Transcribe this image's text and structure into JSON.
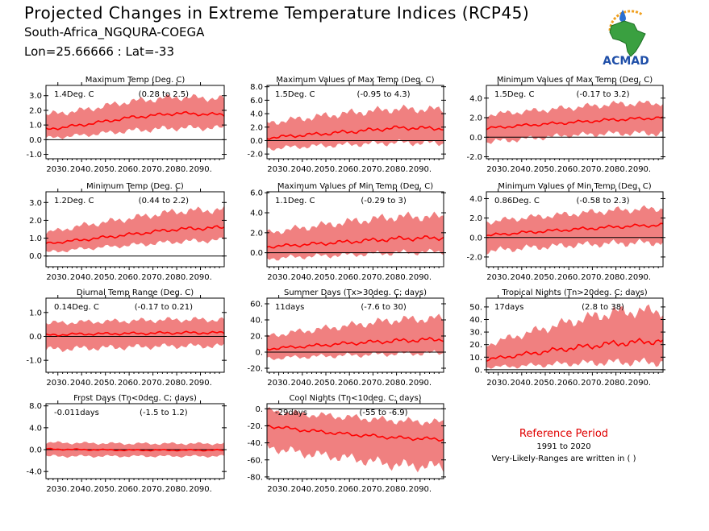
{
  "header": {
    "title": "Projected Changes in Extreme Temperature Indices (RCP45)",
    "subtitle1": "South-Africa_NGQURA-COEGA",
    "subtitle2": "Lon=25.66666 : Lat=-33"
  },
  "logo": {
    "text": "ACMAD",
    "icon": "africa-map-logo"
  },
  "reference": {
    "title": "Reference Period",
    "years": "1991 to 2020",
    "note": "Very-Likely-Ranges are written in ( )"
  },
  "colors": {
    "band": "#f08080",
    "line": "#ff0000",
    "zero": "#000000",
    "ref_title": "#e00000"
  },
  "chart_data": [
    {
      "type": "area",
      "title": "Maximum Temp (Deg. C)",
      "change": "1.4Deg. C",
      "range": "(0.28 to 2.5)",
      "x_ticks": [
        "2030.",
        "2040.",
        "2050.",
        "2060.",
        "2070.",
        "2080.",
        "2090."
      ],
      "x_range": [
        2025,
        2100
      ],
      "y_ticks": [
        "-1.0",
        "0.0",
        "1.0",
        "2.0",
        "3.0"
      ],
      "y_tick_values": [
        -1,
        0,
        1,
        2,
        3
      ],
      "ylim": [
        -1.3,
        3.7
      ],
      "series": [
        {
          "x": [
            2025,
            2040,
            2060,
            2080,
            2100
          ],
          "mean": [
            0.7,
            1.0,
            1.5,
            1.8,
            1.7
          ],
          "low": [
            0.1,
            0.3,
            0.6,
            0.8,
            0.8
          ],
          "high": [
            1.7,
            2.0,
            2.6,
            2.9,
            2.8
          ]
        }
      ]
    },
    {
      "type": "area",
      "title": "Maximum Values of Max Temp (Deg. C)",
      "change": "1.5Deg. C",
      "range": "(-0.95 to 4.3)",
      "x_ticks": [
        "2030.",
        "2040.",
        "2050.",
        "2060.",
        "2070.",
        "2080.",
        "2090."
      ],
      "x_range": [
        2025,
        2100
      ],
      "y_ticks": [
        "-2.0",
        "0.0",
        "2.0",
        "4.0",
        "6.0",
        "8.0"
      ],
      "y_tick_values": [
        -2,
        0,
        2,
        4,
        6,
        8
      ],
      "ylim": [
        -2.7,
        8.2
      ],
      "series": [
        {
          "x": [
            2025,
            2040,
            2060,
            2080,
            2100
          ],
          "mean": [
            0.4,
            0.8,
            1.3,
            1.9,
            1.8
          ],
          "low": [
            -1.2,
            -0.9,
            -0.6,
            -0.3,
            -0.4
          ],
          "high": [
            2.6,
            3.3,
            4.1,
            4.7,
            4.6
          ]
        }
      ]
    },
    {
      "type": "area",
      "title": "Minimum Values of Max Temp (Deg. C)",
      "change": "1.5Deg. C",
      "range": "(-0.17 to 3.2)",
      "x_ticks": [
        "2030.",
        "2040.",
        "2050.",
        "2060.",
        "2070.",
        "2080.",
        "2090."
      ],
      "x_range": [
        2025,
        2100
      ],
      "y_ticks": [
        "-2.0",
        "0.0",
        "2.0",
        "4.0"
      ],
      "y_tick_values": [
        -2,
        0,
        2,
        4
      ],
      "ylim": [
        -2.2,
        5.3
      ],
      "series": [
        {
          "x": [
            2025,
            2040,
            2060,
            2080,
            2100
          ],
          "mean": [
            0.9,
            1.2,
            1.5,
            1.8,
            2.0
          ],
          "low": [
            -0.5,
            -0.2,
            0.2,
            0.4,
            0.4
          ],
          "high": [
            2.3,
            2.6,
            3.0,
            3.4,
            3.5
          ]
        }
      ]
    },
    {
      "type": "area",
      "title": "Minimum Temp (Deg. C)",
      "change": "1.2Deg. C",
      "range": "(0.44 to 2.2)",
      "x_ticks": [
        "2030.",
        "2040.",
        "2050.",
        "2060.",
        "2070.",
        "2080.",
        "2090."
      ],
      "x_range": [
        2025,
        2100
      ],
      "y_ticks": [
        "0.0",
        "1.0",
        "2.0",
        "3.0"
      ],
      "y_tick_values": [
        0,
        1,
        2,
        3
      ],
      "ylim": [
        -0.6,
        3.6
      ],
      "series": [
        {
          "x": [
            2025,
            2040,
            2060,
            2080,
            2100
          ],
          "mean": [
            0.7,
            0.9,
            1.2,
            1.5,
            1.6
          ],
          "low": [
            0.2,
            0.4,
            0.6,
            0.8,
            0.9
          ],
          "high": [
            1.3,
            1.7,
            2.1,
            2.5,
            2.6
          ]
        }
      ]
    },
    {
      "type": "area",
      "title": "Maximum Values of Min Temp (Deg. C)",
      "change": "1.1Deg. C",
      "range": "(-0.29 to 3)",
      "x_ticks": [
        "2030.",
        "2040.",
        "2050.",
        "2060.",
        "2070.",
        "2080.",
        "2090."
      ],
      "x_range": [
        2025,
        2100
      ],
      "y_ticks": [
        "0.0",
        "2.0",
        "4.0",
        "6.0"
      ],
      "y_tick_values": [
        0,
        2,
        4,
        6
      ],
      "ylim": [
        -1.4,
        6.1
      ],
      "series": [
        {
          "x": [
            2025,
            2040,
            2060,
            2080,
            2100
          ],
          "mean": [
            0.6,
            0.8,
            1.1,
            1.4,
            1.5
          ],
          "low": [
            -0.6,
            -0.4,
            -0.2,
            0.0,
            0.1
          ],
          "high": [
            2.0,
            2.5,
            3.1,
            3.6,
            3.6
          ]
        }
      ]
    },
    {
      "type": "area",
      "title": "Minimum Values of Min Temp (Deg. C)",
      "change": "0.86Deg. C",
      "range": "(-0.58 to 2.3)",
      "x_ticks": [
        "2030.",
        "2040.",
        "2050.",
        "2060.",
        "2070.",
        "2080.",
        "2090."
      ],
      "x_range": [
        2025,
        2100
      ],
      "y_ticks": [
        "-2.0",
        "0.0",
        "2.0",
        "4.0"
      ],
      "y_tick_values": [
        -2,
        0,
        2,
        4
      ],
      "ylim": [
        -3.0,
        4.7
      ],
      "series": [
        {
          "x": [
            2025,
            2040,
            2060,
            2080,
            2100
          ],
          "mean": [
            0.2,
            0.5,
            0.8,
            1.1,
            1.3
          ],
          "low": [
            -1.4,
            -1.1,
            -0.8,
            -0.6,
            -0.5
          ],
          "high": [
            1.6,
            2.0,
            2.4,
            2.8,
            3.0
          ]
        }
      ]
    },
    {
      "type": "area",
      "title": "Diurnal Temp Range (Deg. C)",
      "change": "0.14Deg. C",
      "range": "(-0.17 to 0.21)",
      "x_ticks": [
        "2030.",
        "2040.",
        "2050.",
        "2060.",
        "2070.",
        "2080.",
        "2090."
      ],
      "x_range": [
        2025,
        2100
      ],
      "y_ticks": [
        "-1.0",
        "0.0",
        "1.0"
      ],
      "y_tick_values": [
        -1,
        0,
        1
      ],
      "ylim": [
        -1.5,
        1.6
      ],
      "series": [
        {
          "x": [
            2025,
            2040,
            2060,
            2080,
            2100
          ],
          "mean": [
            0.05,
            0.1,
            0.12,
            0.15,
            0.15
          ],
          "low": [
            -0.55,
            -0.5,
            -0.45,
            -0.4,
            -0.4
          ],
          "high": [
            0.55,
            0.6,
            0.65,
            0.7,
            0.7
          ]
        }
      ]
    },
    {
      "type": "area",
      "title": "Summer Days (Tx>30deg. C; days)",
      "change": "11days",
      "range": "(-7.6 to 30)",
      "x_ticks": [
        "2030.",
        "2040.",
        "2050.",
        "2060.",
        "2070.",
        "2080.",
        "2090."
      ],
      "x_range": [
        2025,
        2100
      ],
      "y_ticks": [
        "-20.",
        "0.",
        "20.",
        "40.",
        "60."
      ],
      "y_tick_values": [
        -20,
        0,
        20,
        40,
        60
      ],
      "ylim": [
        -25,
        67
      ],
      "series": [
        {
          "x": [
            2025,
            2040,
            2060,
            2080,
            2100
          ],
          "mean": [
            4,
            7,
            11,
            14,
            16
          ],
          "low": [
            -8,
            -6,
            -4,
            -2,
            -1
          ],
          "high": [
            20,
            26,
            33,
            40,
            42
          ]
        }
      ]
    },
    {
      "type": "area",
      "title": "Tropical Nights (Tn>20deg. C; days)",
      "change": "17days",
      "range": "(2.8 to 38)",
      "x_ticks": [
        "2030.",
        "2040.",
        "2050.",
        "2060.",
        "2070.",
        "2080.",
        "2090."
      ],
      "x_range": [
        2025,
        2100
      ],
      "y_ticks": [
        "0.",
        "10.",
        "20.",
        "30.",
        "40.",
        "50."
      ],
      "y_tick_values": [
        0,
        10,
        20,
        30,
        40,
        50
      ],
      "ylim": [
        -2,
        57
      ],
      "series": [
        {
          "x": [
            2025,
            2040,
            2060,
            2080,
            2100
          ],
          "mean": [
            8,
            12,
            17,
            21,
            23
          ],
          "low": [
            2,
            3,
            5,
            6,
            6
          ],
          "high": [
            20,
            28,
            38,
            46,
            47
          ]
        }
      ]
    },
    {
      "type": "area",
      "title": "Frost Days (Tn<0deg. C; days)",
      "change": "-0.011days",
      "range": "(-1.5 to 1.2)",
      "x_ticks": [
        "2030.",
        "2040.",
        "2050.",
        "2060.",
        "2070.",
        "2080.",
        "2090."
      ],
      "x_range": [
        2025,
        2100
      ],
      "y_ticks": [
        "-4.0",
        "0.0",
        "4.0",
        "8.0"
      ],
      "y_tick_values": [
        -4,
        0,
        4,
        8
      ],
      "ylim": [
        -5.3,
        8.4
      ],
      "series": [
        {
          "x": [
            2025,
            2040,
            2060,
            2080,
            2100
          ],
          "mean": [
            0.1,
            0.0,
            -0.1,
            -0.1,
            -0.1
          ],
          "low": [
            -1.2,
            -1.2,
            -1.2,
            -1.2,
            -1.2
          ],
          "high": [
            1.3,
            1.2,
            1.1,
            1.1,
            1.1
          ]
        }
      ]
    },
    {
      "type": "area",
      "title": "Cool Nights (Tn<10deg. C; days)",
      "change": "-29days",
      "range": "(-55 to -6.9)",
      "x_ticks": [
        "2030.",
        "2040.",
        "2050.",
        "2060.",
        "2070.",
        "2080.",
        "2090."
      ],
      "x_range": [
        2025,
        2100
      ],
      "y_ticks": [
        "-80.",
        "-60.",
        "-40.",
        "-20.",
        "0."
      ],
      "y_tick_values": [
        -80,
        -60,
        -40,
        -20,
        0
      ],
      "ylim": [
        -82,
        6
      ],
      "series": [
        {
          "x": [
            2025,
            2040,
            2060,
            2080,
            2100
          ],
          "mean": [
            -20,
            -25,
            -30,
            -34,
            -36
          ],
          "low": [
            -45,
            -52,
            -58,
            -66,
            -68
          ],
          "high": [
            -2,
            -6,
            -10,
            -14,
            -16
          ]
        }
      ]
    }
  ]
}
